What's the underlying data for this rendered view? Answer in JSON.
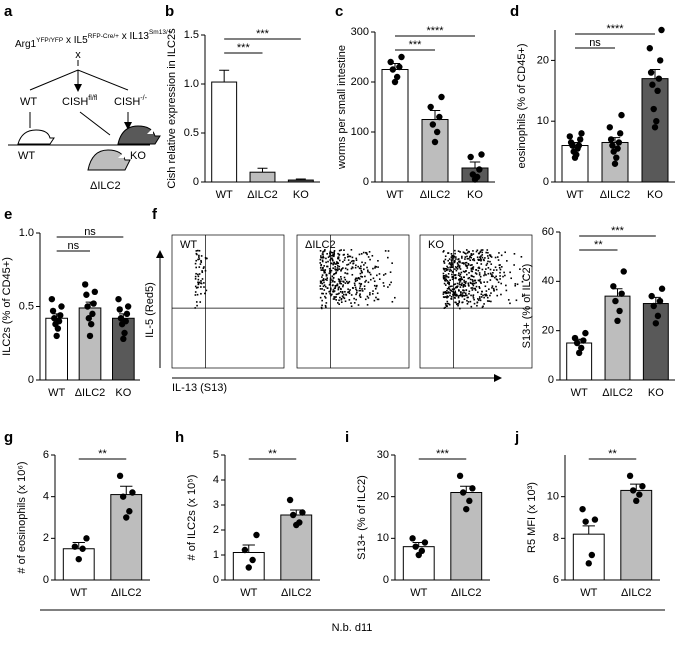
{
  "panel_labels": [
    "a",
    "b",
    "c",
    "d",
    "e",
    "f",
    "g",
    "h",
    "i",
    "j"
  ],
  "diagram": {
    "cross": [
      {
        "base": "Arg1",
        "sup": "YFP/YFP"
      },
      {
        "base": " x IL5",
        "sup": "RFP-Cre/+"
      },
      {
        "base": " x IL13",
        "sup": "Sm13/+"
      }
    ],
    "times": "x",
    "arms": [
      {
        "base": "WT",
        "sup": ""
      },
      {
        "base": "CISH",
        "sup": "fl/fl"
      },
      {
        "base": "CISH",
        "sup": "-/-"
      }
    ],
    "mice": [
      "WT",
      "ΔILC2",
      "KO"
    ]
  },
  "flow": {
    "panels": [
      "WT",
      "ΔILC2",
      "KO"
    ],
    "ylabel": "IL-5 (Red5)",
    "xlabel": "IL-13 (S13)"
  },
  "footer": "N.b. d11",
  "chart_data": [
    {
      "type": "bar",
      "ylabel": "Cish relative expression in ILC2s",
      "categories": [
        "WT",
        "ΔILC2",
        "KO"
      ],
      "colors": [
        "#ffffff",
        "#bdbdbd",
        "#595959"
      ],
      "values": [
        1.02,
        0.1,
        0.02
      ],
      "errors": [
        0.12,
        0.04,
        0.01
      ],
      "ylim": [
        0,
        1.5
      ],
      "yticks": [
        0,
        0.5,
        {
          "value": 1,
          "label": "1.0"
        },
        1.5
      ],
      "annotations": [
        "***",
        "***"
      ]
    },
    {
      "type": "bar",
      "ylabel": "worms per small intestine",
      "categories": [
        "WT",
        "ΔILC2",
        "KO"
      ],
      "colors": [
        "#ffffff",
        "#bdbdbd",
        "#595959"
      ],
      "values": [
        225,
        125,
        28
      ],
      "errors": [
        12,
        18,
        12
      ],
      "points": [
        [
          200,
          210,
          225,
          230,
          240,
          250
        ],
        [
          80,
          100,
          115,
          130,
          150,
          170
        ],
        [
          5,
          10,
          15,
          25,
          50,
          55
        ]
      ],
      "ylim": [
        0,
        300
      ],
      "yticks": [
        0,
        100,
        200,
        300
      ],
      "annotations": [
        "***",
        "****"
      ]
    },
    {
      "type": "bar",
      "ylabel": "eosinophils (% of CD45+)",
      "categories": [
        "WT",
        "ΔILC2",
        "KO"
      ],
      "colors": [
        "#ffffff",
        "#bdbdbd",
        "#595959"
      ],
      "values": [
        6,
        6.5,
        17
      ],
      "errors": [
        0.5,
        0.8,
        1.5
      ],
      "points": [
        [
          4,
          4.5,
          5,
          5.5,
          6,
          6,
          6.5,
          7,
          7.5,
          8
        ],
        [
          3,
          4,
          5,
          5.5,
          6,
          6.5,
          7,
          8,
          9,
          11
        ],
        [
          9,
          10,
          12,
          15,
          16,
          17,
          18,
          20,
          22,
          25
        ]
      ],
      "ylim": [
        0,
        25
      ],
      "yticks": [
        0,
        10,
        20
      ],
      "annotations": [
        "ns",
        "****"
      ]
    },
    {
      "type": "bar",
      "ylabel": "ILC2s (% of CD45+)",
      "categories": [
        "WT",
        "ΔILC2",
        "KO"
      ],
      "colors": [
        "#ffffff",
        "#bdbdbd",
        "#595959"
      ],
      "values": [
        0.42,
        0.49,
        0.42
      ],
      "errors": [
        0.03,
        0.04,
        0.03
      ],
      "points": [
        [
          0.3,
          0.35,
          0.38,
          0.4,
          0.42,
          0.44,
          0.47,
          0.5,
          0.55
        ],
        [
          0.3,
          0.38,
          0.42,
          0.45,
          0.5,
          0.52,
          0.58,
          0.6,
          0.65
        ],
        [
          0.28,
          0.32,
          0.38,
          0.4,
          0.42,
          0.45,
          0.48,
          0.5,
          0.55
        ]
      ],
      "ylim": [
        0,
        1
      ],
      "yticks": [
        0,
        0.5,
        {
          "value": 1,
          "label": "1.0"
        }
      ],
      "annotations": [
        "ns",
        "ns"
      ]
    },
    {
      "type": "bar",
      "ylabel": "S13+ (% of ILC2)",
      "categories": [
        "WT",
        "ΔILC2",
        "KO"
      ],
      "colors": [
        "#ffffff",
        "#bdbdbd",
        "#595959"
      ],
      "values": [
        15,
        34,
        31
      ],
      "errors": [
        1.5,
        3,
        2.5
      ],
      "points": [
        [
          11,
          13,
          15,
          16,
          17,
          19
        ],
        [
          24,
          28,
          32,
          35,
          38,
          44
        ],
        [
          23,
          26,
          30,
          32,
          34,
          37
        ]
      ],
      "ylim": [
        0,
        60
      ],
      "yticks": [
        0,
        20,
        40,
        60
      ],
      "annotations": [
        "**",
        "***"
      ]
    },
    {
      "type": "bar",
      "ylabel": "# of eosinophils (x 10⁶)",
      "categories": [
        "WT",
        "ΔILC2"
      ],
      "colors": [
        "#ffffff",
        "#bdbdbd"
      ],
      "values": [
        1.5,
        4.1
      ],
      "errors": [
        0.3,
        0.4
      ],
      "points": [
        [
          1.0,
          1.5,
          1.6,
          2.0
        ],
        [
          3.0,
          3.3,
          4.0,
          4.2,
          5.0
        ]
      ],
      "ylim": [
        0,
        6
      ],
      "yticks": [
        0,
        2,
        4,
        6
      ],
      "annotations": [
        "**"
      ]
    },
    {
      "type": "bar",
      "ylabel": "# of ILC2s (x 10⁵)",
      "categories": [
        "WT",
        "ΔILC2"
      ],
      "colors": [
        "#ffffff",
        "#bdbdbd"
      ],
      "values": [
        1.1,
        2.6
      ],
      "errors": [
        0.3,
        0.2
      ],
      "points": [
        [
          0.5,
          0.8,
          1.2,
          1.8
        ],
        [
          2.2,
          2.3,
          2.6,
          2.7,
          3.2
        ]
      ],
      "ylim": [
        0,
        5
      ],
      "yticks": [
        0,
        1,
        2,
        3,
        4,
        5
      ],
      "annotations": [
        "**"
      ]
    },
    {
      "type": "bar",
      "ylabel": "S13+ (% of ILC2)",
      "categories": [
        "WT",
        "ΔILC2"
      ],
      "colors": [
        "#ffffff",
        "#bdbdbd"
      ],
      "values": [
        8,
        21
      ],
      "errors": [
        1,
        1.5
      ],
      "points": [
        [
          6,
          7,
          8,
          9,
          10
        ],
        [
          17,
          19,
          21,
          22,
          25
        ]
      ],
      "ylim": [
        0,
        30
      ],
      "yticks": [
        0,
        10,
        20,
        30
      ],
      "annotations": [
        "***"
      ]
    },
    {
      "type": "bar",
      "ylabel": "R5 MFI (x 10³)",
      "categories": [
        "WT",
        "ΔILC2"
      ],
      "colors": [
        "#ffffff",
        "#bdbdbd"
      ],
      "values": [
        8.2,
        10.3
      ],
      "errors": [
        0.4,
        0.3
      ],
      "points": [
        [
          6.8,
          7.2,
          8.8,
          8.9,
          9.4
        ],
        [
          9.8,
          10.1,
          10.3,
          10.5,
          11.0
        ]
      ],
      "ylim": [
        6,
        12
      ],
      "yticks": [
        6,
        8,
        10
      ],
      "annotations": [
        "**"
      ]
    }
  ]
}
